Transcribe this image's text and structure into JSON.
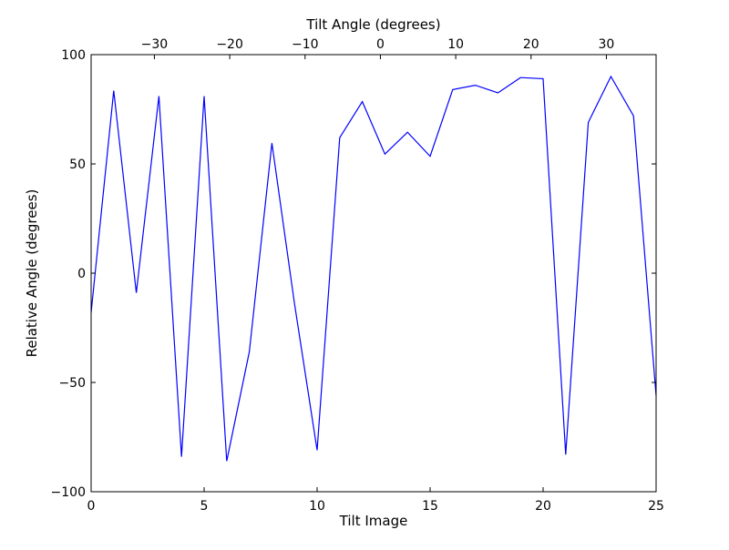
{
  "chart_data": {
    "type": "line",
    "xlabel": "Tilt Image",
    "ylabel": "Relative Angle (degrees)",
    "x2label": "Tilt Angle (degrees)",
    "xlim": [
      0,
      25
    ],
    "ylim": [
      -100,
      100
    ],
    "x2lim": [
      -38.4,
      36.6
    ],
    "xticks": [
      0,
      5,
      10,
      15,
      20,
      25
    ],
    "yticks": [
      -100,
      -50,
      0,
      50,
      100
    ],
    "x2ticks": [
      -30,
      -20,
      -10,
      0,
      10,
      20,
      30
    ],
    "xtick_labels": [
      "0",
      "5",
      "10",
      "15",
      "20",
      "25"
    ],
    "ytick_labels": [
      "−100",
      "−50",
      "0",
      "50",
      "100"
    ],
    "x2tick_labels": [
      "−30",
      "−20",
      "−10",
      "0",
      "10",
      "20",
      "30"
    ],
    "grid": false,
    "series": [
      {
        "color": "#0000ff",
        "x": [
          0,
          1,
          2,
          3,
          4,
          5,
          6,
          7,
          8,
          9,
          10,
          11,
          12,
          13,
          14,
          15,
          16,
          17,
          18,
          19,
          20,
          21,
          22,
          23,
          24,
          25
        ],
        "y": [
          -18,
          83.5,
          -9,
          81,
          -84,
          81,
          -86,
          -36,
          59.5,
          -14,
          -81,
          62,
          78.5,
          54.5,
          64.5,
          53.5,
          84,
          86,
          82.5,
          89.5,
          89,
          -83,
          69,
          90,
          72,
          -56
        ]
      }
    ]
  }
}
